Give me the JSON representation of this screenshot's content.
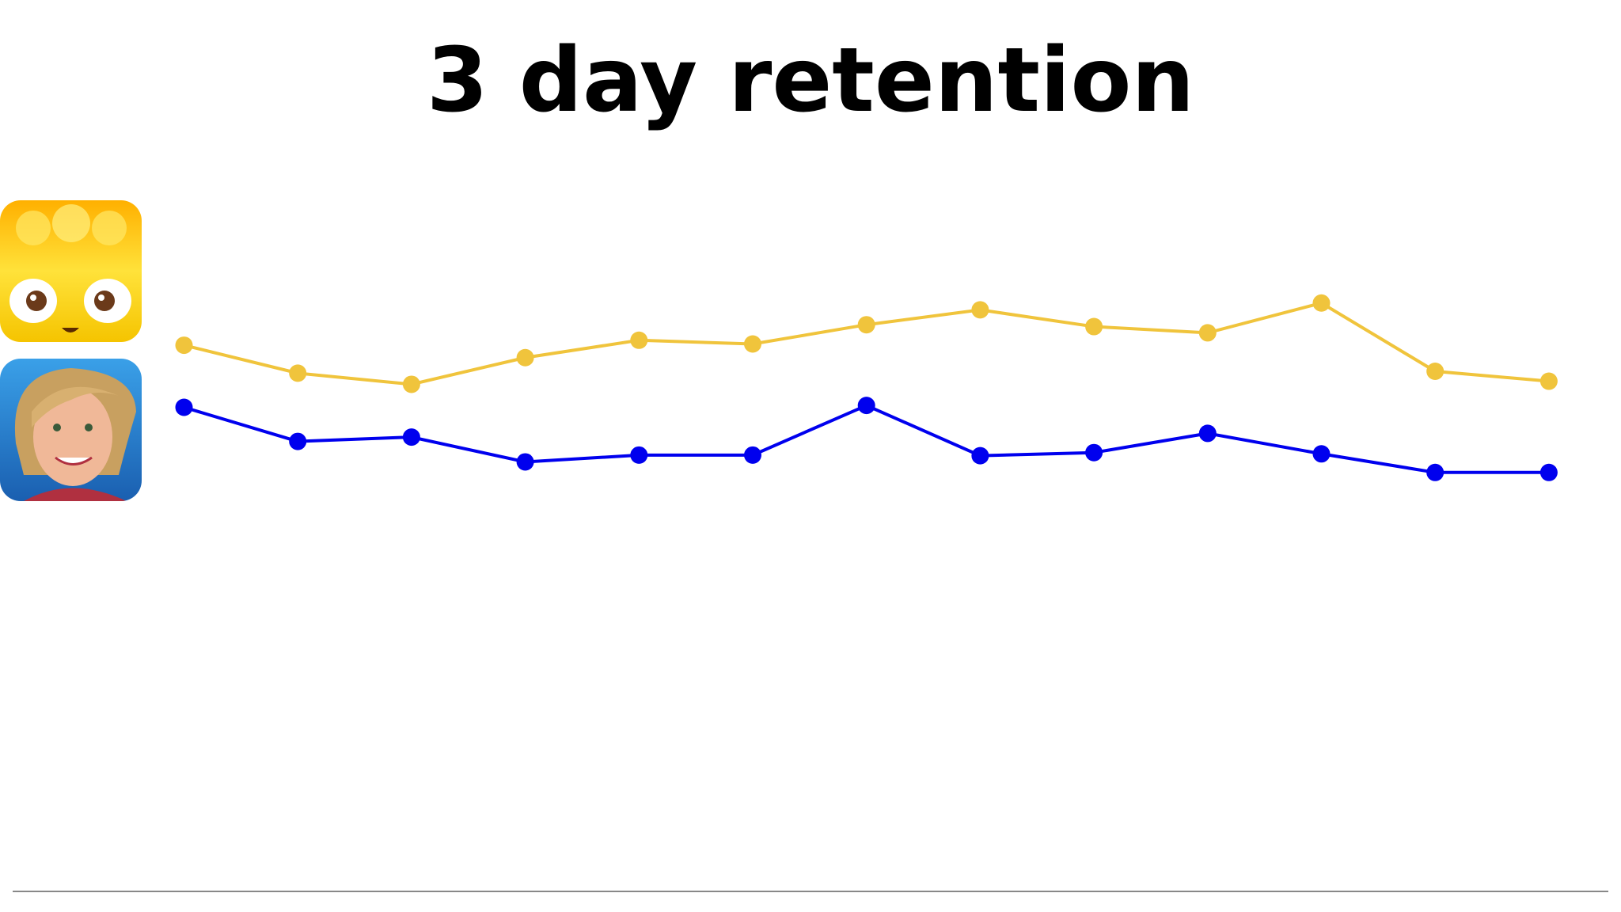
{
  "chart_data": {
    "type": "line",
    "title": "3 day retention",
    "categories": [
      null,
      null,
      null,
      null,
      null,
      null,
      null,
      null,
      null,
      null,
      null,
      null,
      null
    ],
    "series": [
      {
        "color": "#f0c43c",
        "values": [
          88.0,
          83.5,
          81.7,
          86.0,
          88.8,
          88.2,
          91.3,
          93.7,
          91.0,
          90.0,
          94.8,
          83.8,
          82.2
        ]
      },
      {
        "color": "#0000ee",
        "values": [
          78.0,
          72.5,
          73.2,
          69.2,
          70.3,
          70.3,
          78.3,
          70.2,
          70.7,
          73.8,
          70.5,
          67.5,
          67.5
        ]
      }
    ],
    "ylim": [
      0,
      100
    ]
  }
}
